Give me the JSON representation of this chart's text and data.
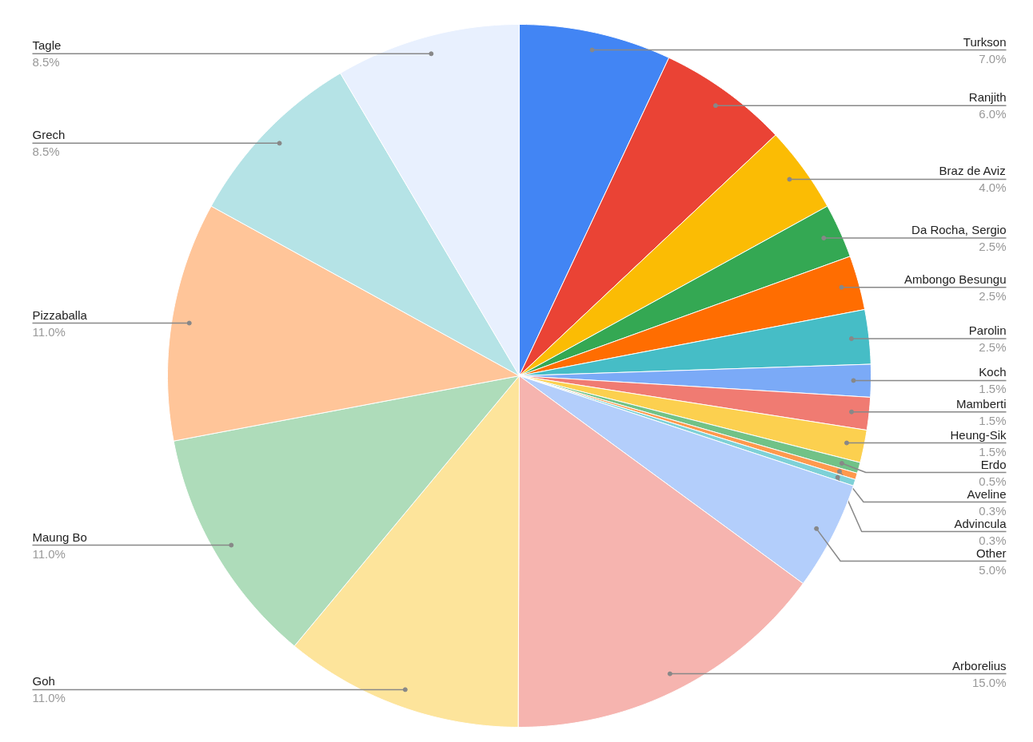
{
  "chart_data": {
    "type": "pie",
    "categories": [
      "Turkson",
      "Ranjith",
      "Braz de Aviz",
      "Da Rocha, Sergio",
      "Ambongo Besungu",
      "Parolin",
      "Koch",
      "Mamberti",
      "Heung-Sik",
      "Erdo",
      "Aveline",
      "Advincula",
      "Other",
      "Arborelius",
      "Goh",
      "Maung Bo",
      "Pizzaballa",
      "Grech",
      "Tagle"
    ],
    "values": [
      7.0,
      6.0,
      4.0,
      2.5,
      2.5,
      2.5,
      1.5,
      1.5,
      1.5,
      0.5,
      0.3,
      0.3,
      5.0,
      15.0,
      11.0,
      11.0,
      11.0,
      8.5,
      8.5
    ],
    "value_labels": [
      "7.0%",
      "6.0%",
      "4.0%",
      "2.5%",
      "2.5%",
      "2.5%",
      "1.5%",
      "1.5%",
      "1.5%",
      "0.5%",
      "0.3%",
      "0.3%",
      "5.0%",
      "15.0%",
      "11.0%",
      "11.0%",
      "11.0%",
      "8.5%",
      "8.5%"
    ],
    "colors": [
      "#4285f4",
      "#ea4335",
      "#fbbc04",
      "#34a853",
      "#ff6d01",
      "#46bdc6",
      "#7baaf7",
      "#f07b72",
      "#fcd04f",
      "#71c287",
      "#ff994d",
      "#7ed1d7",
      "#b3cefb",
      "#f6b4af",
      "#fde49b",
      "#aedcba",
      "#ffc599",
      "#b5e3e6",
      "#e8f0fe"
    ]
  }
}
